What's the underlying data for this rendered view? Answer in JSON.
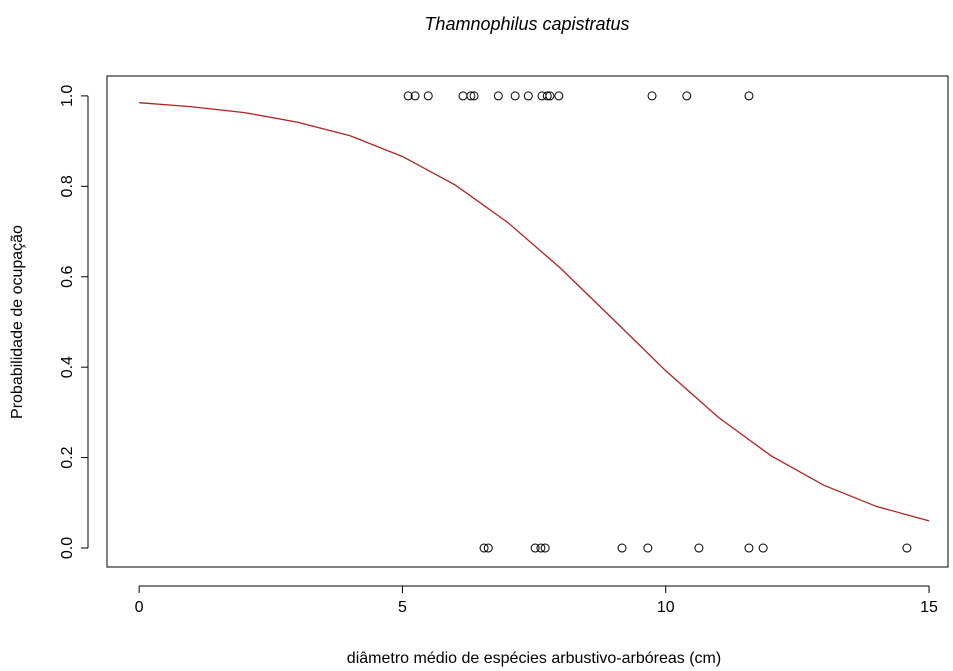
{
  "chart_data": {
    "type": "scatter",
    "title": "Thamnophilus capistratus",
    "x_label": "diâmetro médio de espécies arbustivo-arbóreas (cm)",
    "y_label": "Probabilidade de ocupação",
    "xlim": [
      -0.61,
      15.36
    ],
    "ylim": [
      -0.042,
      1.044
    ],
    "xticks": [
      0,
      5,
      10,
      15
    ],
    "yticks": [
      {
        "value": 0,
        "label": "0.0"
      },
      {
        "value": 0.2,
        "label": "0.2"
      },
      {
        "value": 0.4,
        "label": "0.4"
      },
      {
        "value": 0.6,
        "label": "0.6"
      },
      {
        "value": 0.8,
        "label": "0.8"
      },
      {
        "value": 1,
        "label": "1.0"
      }
    ],
    "grid": false,
    "series": [
      {
        "type": "scatter",
        "color": "#000000",
        "x": [
          5.11,
          5.24,
          5.49,
          6.15,
          6.3,
          6.36,
          6.82,
          7.14,
          7.39,
          7.65,
          7.75,
          7.8,
          7.97,
          9.74,
          10.4,
          11.58,
          6.55,
          6.63,
          7.52,
          7.63,
          7.71,
          9.17,
          9.66,
          10.63,
          11.58,
          11.85,
          14.58
        ],
        "values": [
          1,
          1,
          1,
          1,
          1,
          1,
          1,
          1,
          1,
          1,
          1,
          1,
          1,
          1,
          1,
          1,
          0,
          0,
          0,
          0,
          0,
          0,
          0,
          0,
          0,
          0,
          0
        ]
      },
      {
        "type": "line",
        "color": "#b22222",
        "x": [
          0,
          1,
          2,
          3,
          4,
          5,
          6,
          7,
          8,
          9,
          10,
          11,
          12,
          13,
          14,
          15
        ],
        "values": [
          0.985,
          0.976,
          0.963,
          0.942,
          0.912,
          0.866,
          0.803,
          0.72,
          0.619,
          0.506,
          0.392,
          0.289,
          0.204,
          0.139,
          0.092,
          0.06
        ]
      }
    ]
  }
}
